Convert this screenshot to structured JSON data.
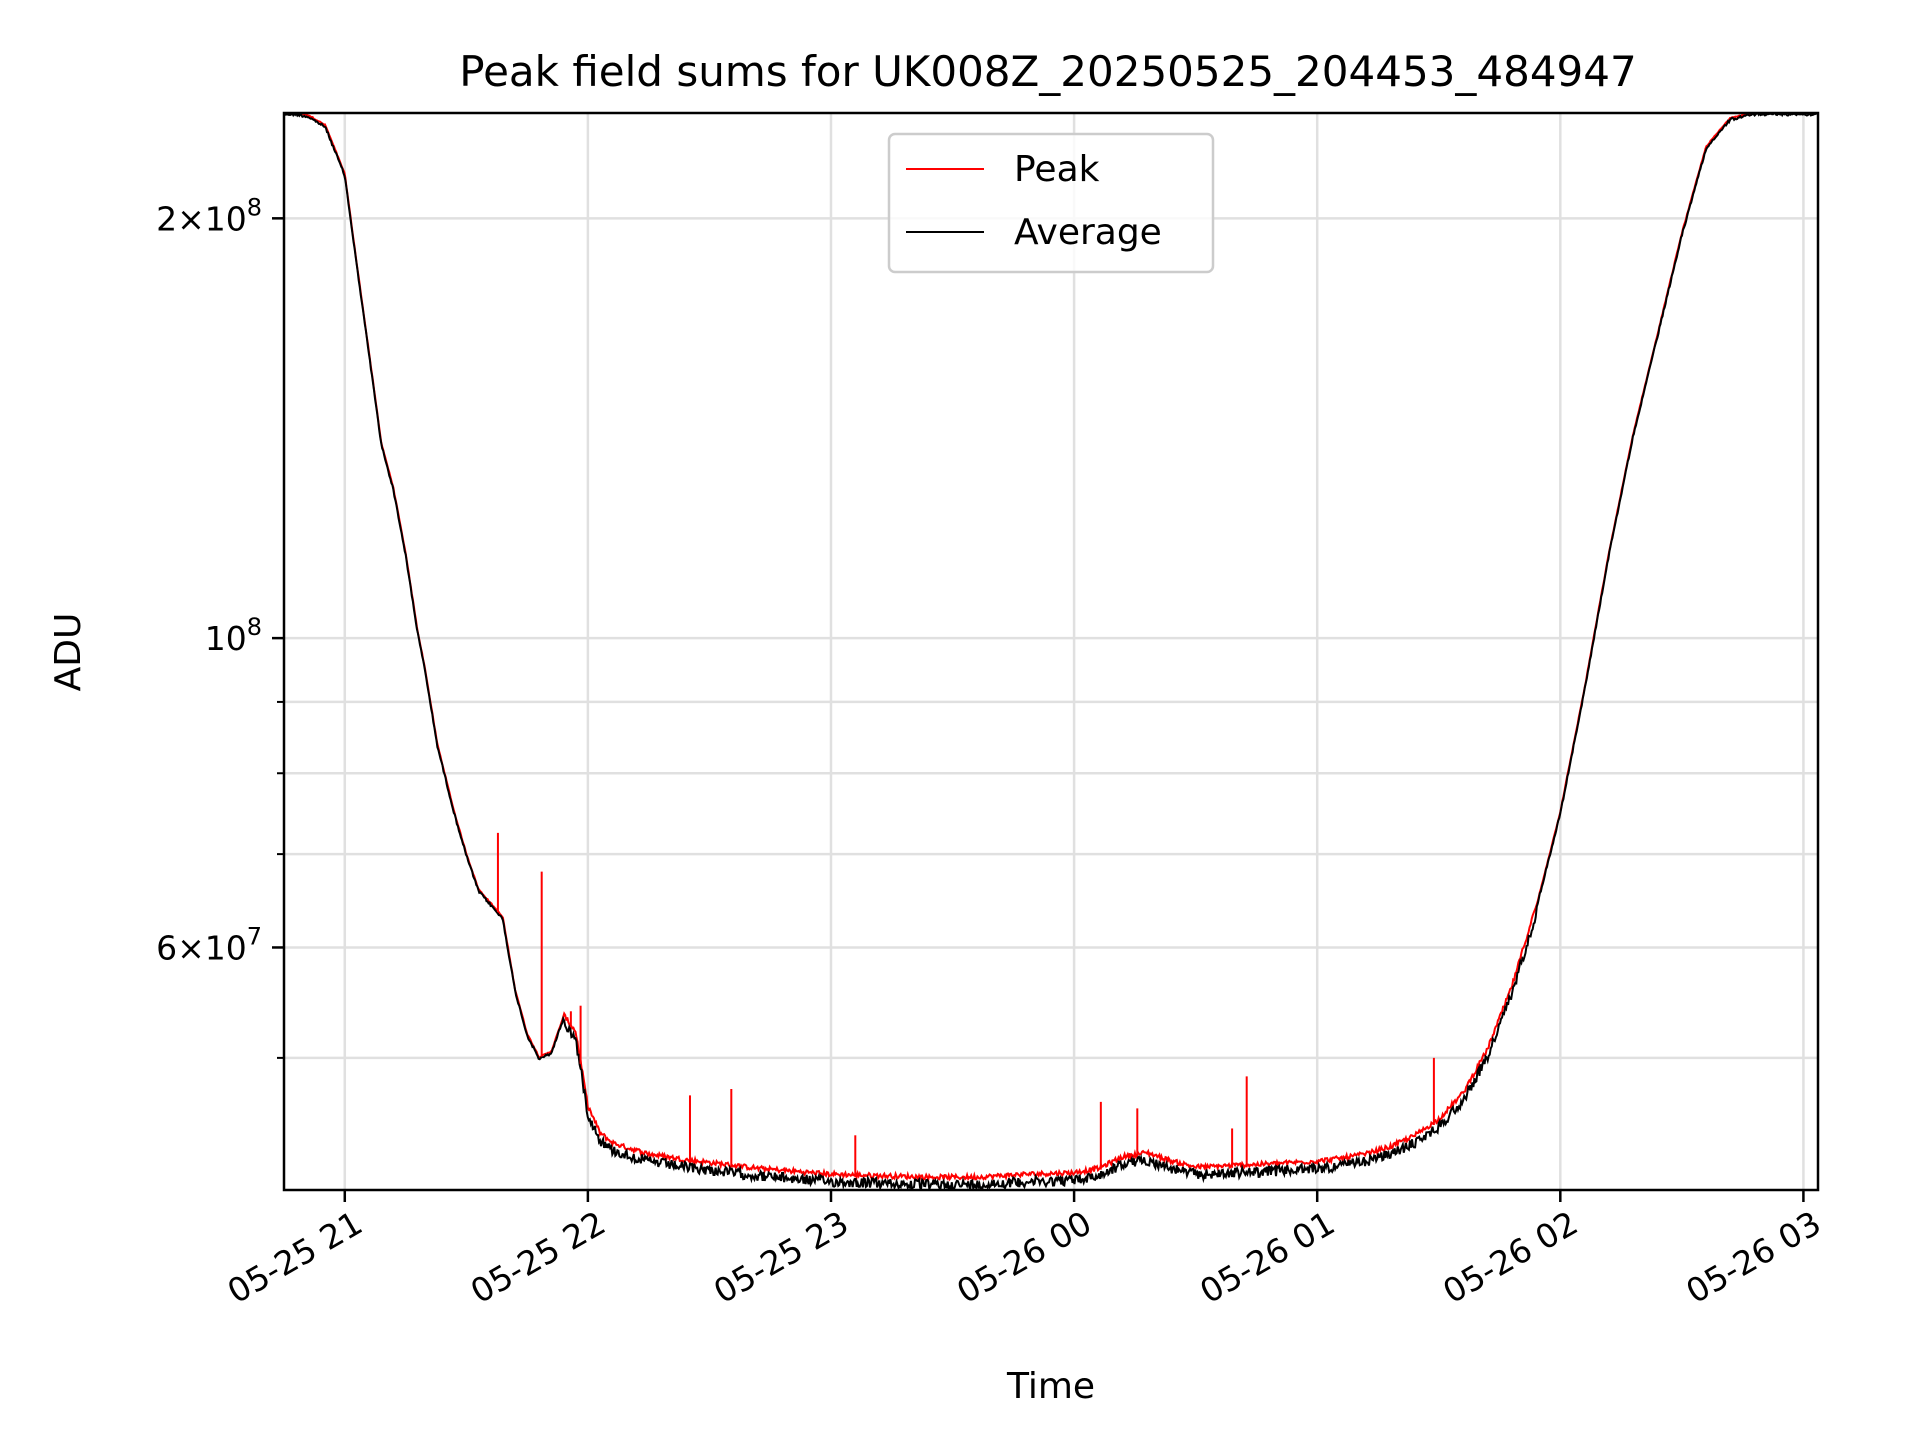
{
  "chart_data": {
    "type": "line",
    "title": "Peak field sums for UK008Z_20250525_204453_484947",
    "xlabel": "Time",
    "ylabel": "ADU",
    "yscale": "log",
    "ylim": [
      40200000,
      238000000
    ],
    "xlim_hours": [
      20.75,
      27.06
    ],
    "x_ticks": [
      {
        "label": "05-25 21",
        "hour": 21
      },
      {
        "label": "05-25 22",
        "hour": 22
      },
      {
        "label": "05-25 23",
        "hour": 23
      },
      {
        "label": "05-26 00",
        "hour": 24
      },
      {
        "label": "05-26 01",
        "hour": 25
      },
      {
        "label": "05-26 02",
        "hour": 26
      },
      {
        "label": "05-26 03",
        "hour": 27
      }
    ],
    "y_ticks": [
      {
        "value": 200000000,
        "mantissa": "2",
        "exponent": "8"
      },
      {
        "value": 100000000,
        "mantissa": "",
        "exponent": "8"
      },
      {
        "value": 60000000,
        "mantissa": "6",
        "exponent": "7"
      }
    ],
    "y_minor_ticks": [
      50000000,
      70000000,
      80000000,
      90000000
    ],
    "legend": {
      "position": "upper-center",
      "entries": [
        "Peak",
        "Average"
      ]
    },
    "series": [
      {
        "name": "Peak",
        "color": "#ff0000"
      },
      {
        "name": "Average",
        "color": "#000000"
      }
    ],
    "time_hours": [
      20.75,
      20.8,
      20.85,
      20.92,
      21.0,
      21.05,
      21.1,
      21.15,
      21.2,
      21.25,
      21.3,
      21.33,
      21.38,
      21.45,
      21.5,
      21.55,
      21.6,
      21.65,
      21.7,
      21.75,
      21.8,
      21.85,
      21.9,
      21.95,
      22.0,
      22.05,
      22.1,
      22.15,
      22.25,
      22.4,
      22.55,
      22.7,
      22.85,
      23.0,
      23.2,
      23.4,
      23.6,
      23.8,
      24.0,
      24.1,
      24.2,
      24.3,
      24.4,
      24.5,
      24.55,
      24.65,
      24.8,
      24.9,
      25.0,
      25.1,
      25.2,
      25.3,
      25.4,
      25.5,
      25.6,
      25.7,
      25.8,
      25.9,
      26.0,
      26.1,
      26.2,
      26.3,
      26.4,
      26.5,
      26.6,
      26.7,
      26.8,
      26.9,
      27.06
    ],
    "average_adu": [
      238000000,
      238000000,
      237000000,
      233000000,
      215000000,
      185000000,
      160000000,
      138000000,
      128000000,
      115000000,
      101000000,
      95000000,
      84000000,
      75000000,
      70000000,
      66000000,
      64500000,
      63000000,
      56000000,
      52000000,
      50000000,
      50500000,
      53500000,
      52000000,
      46000000,
      44000000,
      43300000,
      43000000,
      42500000,
      42100000,
      41800000,
      41500000,
      41300000,
      41100000,
      41000000,
      40900000,
      40900000,
      41100000,
      41200000,
      41500000,
      42300000,
      42600000,
      42000000,
      41600000,
      41600000,
      41700000,
      41800000,
      41900000,
      42000000,
      42200000,
      42500000,
      43000000,
      43800000,
      45000000,
      47000000,
      50500000,
      56000000,
      64000000,
      75000000,
      92000000,
      115000000,
      140000000,
      165000000,
      195000000,
      225000000,
      236000000,
      238000000,
      238000000,
      238000000
    ],
    "peak_spikes": [
      {
        "hour": 21.63,
        "adu": 72500000
      },
      {
        "hour": 21.81,
        "adu": 68000000
      },
      {
        "hour": 21.93,
        "adu": 54000000
      },
      {
        "hour": 21.97,
        "adu": 54500000
      },
      {
        "hour": 22.42,
        "adu": 47000000
      },
      {
        "hour": 22.59,
        "adu": 47500000
      },
      {
        "hour": 23.1,
        "adu": 44000000
      },
      {
        "hour": 24.11,
        "adu": 46500000
      },
      {
        "hour": 24.26,
        "adu": 46000000
      },
      {
        "hour": 24.65,
        "adu": 44500000
      },
      {
        "hour": 24.71,
        "adu": 48500000
      },
      {
        "hour": 25.48,
        "adu": 50000000
      }
    ]
  }
}
